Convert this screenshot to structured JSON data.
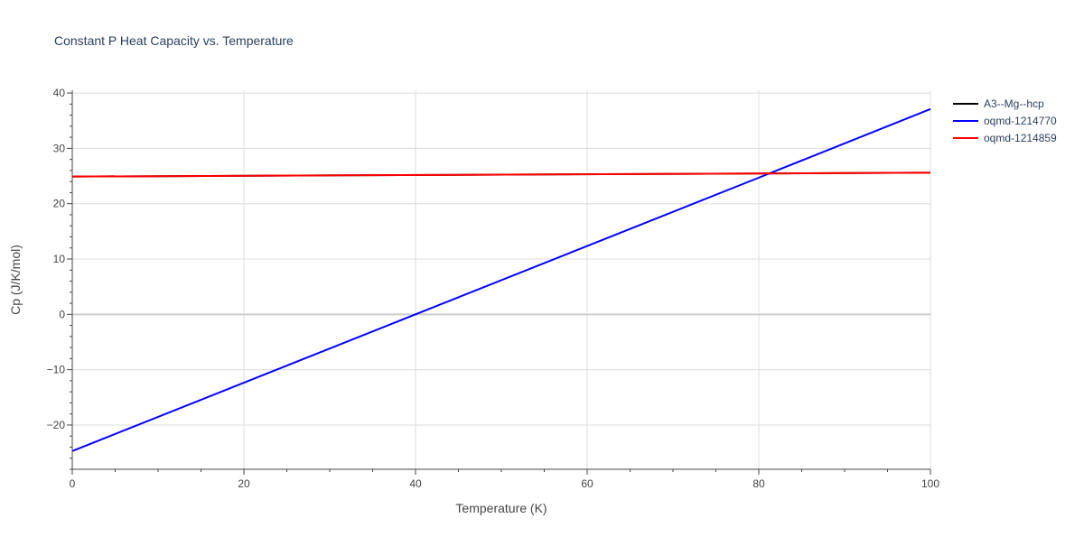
{
  "chart_data": {
    "type": "line",
    "title": "Constant P Heat Capacity vs. Temperature",
    "xlabel": "Temperature (K)",
    "ylabel": "Cp (J/K/mol)",
    "xlim": [
      0,
      100
    ],
    "ylim": [
      -28,
      40.5
    ],
    "x_ticks": [
      0,
      20,
      40,
      60,
      80,
      100
    ],
    "x_tick_labels": [
      "0",
      "20",
      "40",
      "60",
      "80",
      "100"
    ],
    "y_ticks": [
      -20,
      -10,
      0,
      10,
      20,
      30,
      40
    ],
    "y_tick_labels": [
      "−20",
      "−10",
      "0",
      "10",
      "20",
      "30",
      "40"
    ],
    "grid": true,
    "legend_position": "top-right",
    "series": [
      {
        "name": "A3--Mg--hcp",
        "color": "#000000",
        "x": [
          0,
          100
        ],
        "y": [
          24.9,
          25.6
        ]
      },
      {
        "name": "oqmd-1214770",
        "color": "#0000ff",
        "x": [
          0,
          40,
          80,
          100
        ],
        "y": [
          -24.7,
          0,
          24.7,
          37.1
        ]
      },
      {
        "name": "oqmd-1214859",
        "color": "#ff0000",
        "x": [
          0,
          100
        ],
        "y": [
          24.9,
          25.6
        ]
      }
    ]
  },
  "colors": {
    "grid": "#dddddd",
    "zero_line": "#cccccc",
    "axis": "#444444",
    "text": "#2a3f5f"
  }
}
